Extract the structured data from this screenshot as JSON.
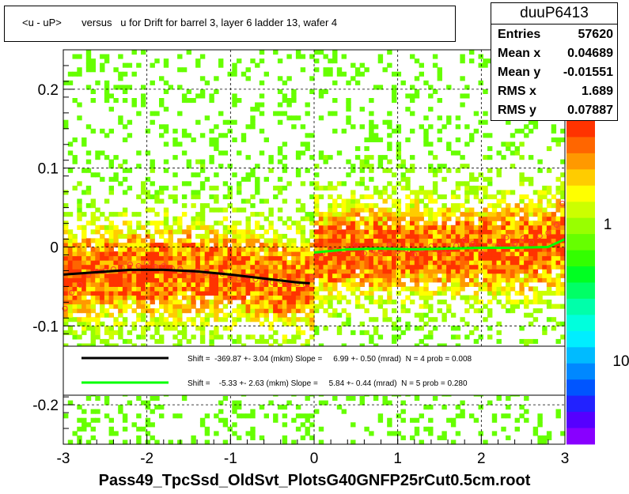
{
  "title": "<u - uP>       versus   u for Drift for barrel 3, layer 6 ladder 13, wafer 4",
  "footer": "Pass49_TpcSsd_OldSvt_PlotsG40GNFP25rCut0.5cm.root",
  "stats": {
    "name": "duuP6413",
    "rows": [
      {
        "label": "Entries",
        "value": "57620"
      },
      {
        "label": "Mean x",
        "value": "0.04689"
      },
      {
        "label": "Mean y",
        "value": "-0.01551"
      },
      {
        "label": "RMS x",
        "value": "1.689"
      },
      {
        "label": "RMS y",
        "value": "0.07887"
      }
    ]
  },
  "chart_data": {
    "type": "heatmap",
    "xlim": [
      -3,
      3
    ],
    "ylim": [
      -0.25,
      0.25
    ],
    "x_ticks": [
      "-3",
      "-2",
      "-1",
      "0",
      "1",
      "2",
      "3"
    ],
    "y_ticks": [
      "-0.2",
      "-0.1",
      "0",
      "0.1",
      "0.2"
    ],
    "color_scale_labels": [
      "1",
      "10"
    ],
    "grid": true,
    "legend": {
      "placement": "lower-center",
      "entries": [
        {
          "color": "#000000",
          "text": "Shift =  -369.87 +- 3.04 (mkm) Slope =     6.99 +- 0.50 (mrad)  N = 4 prob = 0.008"
        },
        {
          "color": "#00ff00",
          "text": "Shift =    -5.33 +- 2.63 (mkm) Slope =     5.84 +- 0.44 (mrad)  N = 5 prob = 0.280"
        }
      ]
    },
    "fit_black": {
      "x": [
        -3.0,
        -2.6,
        -2.2,
        -1.8,
        -1.4,
        -1.0,
        -0.6,
        -0.2,
        -0.05
      ],
      "y": [
        -0.035,
        -0.032,
        -0.029,
        -0.029,
        -0.031,
        -0.035,
        -0.04,
        -0.045,
        -0.046
      ]
    },
    "fit_green": {
      "x": [
        0.0,
        0.4,
        0.8,
        1.2,
        1.6,
        2.0,
        2.4,
        2.8,
        3.0
      ],
      "y": [
        -0.007,
        -0.003,
        -0.002,
        -0.003,
        -0.002,
        -0.001,
        -0.001,
        0.0,
        0.01
      ]
    },
    "profile_points": {
      "x": [
        -2.98,
        -2.9,
        -2.8,
        -2.7,
        -2.6,
        -2.5,
        -2.4,
        -2.3,
        -2.2,
        -2.1,
        -2.0,
        -1.9,
        -1.8,
        -1.7,
        -1.6,
        -1.5,
        -1.4,
        -1.3,
        -1.2,
        -1.1,
        -1.0,
        -0.9,
        -0.8,
        -0.7,
        -0.6,
        -0.5,
        -0.4,
        -0.3,
        -0.2,
        -0.1,
        -0.03,
        0.03,
        0.1,
        0.2,
        0.3,
        0.4,
        0.5,
        0.6,
        0.7,
        0.8,
        0.9,
        1.0,
        1.1,
        1.2,
        1.3,
        1.4,
        1.5,
        1.6,
        1.7,
        1.8,
        1.9,
        2.0,
        2.1,
        2.2,
        2.3,
        2.4,
        2.5,
        2.6,
        2.7,
        2.8,
        2.9,
        2.97
      ],
      "y": [
        -0.078,
        -0.058,
        -0.048,
        -0.035,
        -0.031,
        -0.03,
        -0.028,
        -0.026,
        -0.022,
        -0.024,
        -0.02,
        -0.025,
        -0.024,
        -0.027,
        -0.028,
        -0.032,
        -0.03,
        -0.033,
        -0.036,
        -0.034,
        -0.037,
        -0.04,
        -0.038,
        -0.041,
        -0.044,
        -0.045,
        -0.043,
        -0.047,
        -0.046,
        -0.048,
        -0.038,
        -0.012,
        -0.008,
        -0.004,
        -0.006,
        -0.003,
        0.002,
        -0.008,
        -0.004,
        -0.006,
        0.003,
        -0.005,
        -0.003,
        -0.01,
        -0.003,
        0.001,
        -0.006,
        -0.004,
        0.002,
        0.009,
        0.004,
        -0.008,
        0.007,
        0.001,
        0.012,
        0.004,
        0.011,
        0.006,
        0.014,
        0.018,
        0.028,
        0.055
      ]
    },
    "colors": {
      "frame": "#000000",
      "palette_low": "#aaff00",
      "palette_high": "#ff2200",
      "fit_black": "#000000",
      "fit_green": "#00ff00",
      "profile_marker": "#ff3333"
    }
  }
}
